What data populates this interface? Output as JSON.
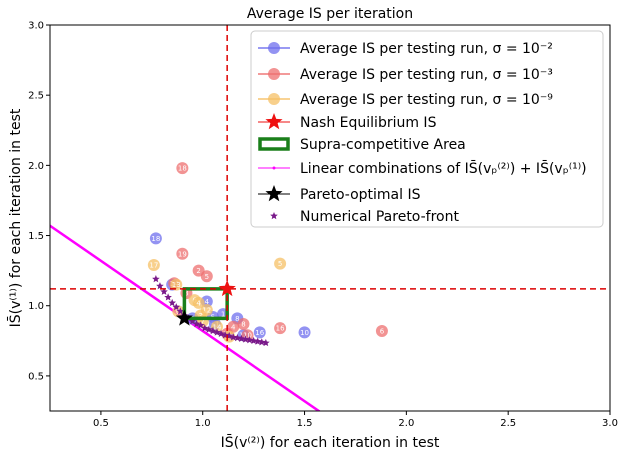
{
  "chart_data": {
    "type": "scatter",
    "title": "Average IS per iteration",
    "xlabel": "IS̄(v⁽²⁾) for each iteration in test",
    "ylabel": "IS̄(v⁽¹⁾) for each iteration in test",
    "xlim": [
      0.25,
      3.0
    ],
    "ylim": [
      0.25,
      3.0
    ],
    "xticks": [
      "0.5",
      "1.0",
      "1.5",
      "2.0",
      "2.5",
      "3.0"
    ],
    "yticks": [
      "0.5",
      "1.0",
      "1.5",
      "2.0",
      "2.5",
      "3.0"
    ],
    "legend_position": "top-right",
    "colors": {
      "blue": "#6f6fee",
      "red": "#ee6f6f",
      "orange": "#f6c066",
      "nash": "#ee1111",
      "supra": "#1a7f1a",
      "linear": "#ff00ff",
      "pareto": "#000000",
      "front": "#7a1a8a",
      "dashed": "#dd0000"
    },
    "legend": [
      {
        "key": "blue",
        "label": "Average IS per testing run, σ = 10⁻²"
      },
      {
        "key": "red",
        "label": "Average IS per testing run, σ = 10⁻³"
      },
      {
        "key": "orange",
        "label": "Average IS per testing run, σ = 10⁻⁹"
      },
      {
        "key": "nash",
        "label": "Nash Equilibrium IS"
      },
      {
        "key": "supra",
        "label": "Supra-competitive Area"
      },
      {
        "key": "linear",
        "label": "Linear combinations of IS̄(vₚ⁽²⁾) + IS̄(vₚ⁽¹⁾)"
      },
      {
        "key": "pareto",
        "label": "Pareto-optimal IS"
      },
      {
        "key": "front",
        "label": "Numerical Pareto-front"
      }
    ],
    "nash": {
      "x": 1.12,
      "y": 1.12
    },
    "supra_area": {
      "x": [
        0.91,
        1.12
      ],
      "y": [
        0.91,
        1.12
      ]
    },
    "pareto_optimal": {
      "x": 0.91,
      "y": 0.91
    },
    "linear_combination": {
      "x": [
        0.2,
        1.6
      ],
      "y": [
        1.62,
        0.22
      ]
    },
    "series": [
      {
        "name": "sigma_1e-2",
        "color_key": "blue",
        "points": [
          {
            "x": 0.77,
            "y": 1.48,
            "label": "18"
          },
          {
            "x": 0.85,
            "y": 1.15,
            "label": "7"
          },
          {
            "x": 1.02,
            "y": 1.03,
            "label": "4"
          },
          {
            "x": 1.06,
            "y": 0.87,
            "label": "11"
          },
          {
            "x": 1.1,
            "y": 0.94,
            "label": "1"
          },
          {
            "x": 1.17,
            "y": 0.91,
            "label": "8"
          },
          {
            "x": 1.28,
            "y": 0.81,
            "label": "16"
          },
          {
            "x": 1.5,
            "y": 0.81,
            "label": "10"
          },
          {
            "x": 1.2,
            "y": 0.79,
            "label": "12"
          },
          {
            "x": 0.95,
            "y": 0.91,
            "label": "9"
          },
          {
            "x": 1.05,
            "y": 0.92,
            "label": "5"
          }
        ]
      },
      {
        "name": "sigma_1e-3",
        "color_key": "red",
        "points": [
          {
            "x": 0.9,
            "y": 1.98,
            "label": "18"
          },
          {
            "x": 0.9,
            "y": 1.37,
            "label": "19"
          },
          {
            "x": 0.98,
            "y": 1.25,
            "label": "2"
          },
          {
            "x": 1.02,
            "y": 1.21,
            "label": "5"
          },
          {
            "x": 0.86,
            "y": 1.16,
            "label": "14"
          },
          {
            "x": 0.92,
            "y": 1.09,
            "label": "3"
          },
          {
            "x": 1.2,
            "y": 0.87,
            "label": "8"
          },
          {
            "x": 1.38,
            "y": 0.84,
            "label": "16"
          },
          {
            "x": 1.88,
            "y": 0.82,
            "label": "6"
          },
          {
            "x": 1.15,
            "y": 0.85,
            "label": "4"
          },
          {
            "x": 1.22,
            "y": 0.79,
            "label": "10"
          },
          {
            "x": 1.12,
            "y": 0.8,
            "label": "13"
          }
        ]
      },
      {
        "name": "sigma_1e-9",
        "color_key": "orange",
        "points": [
          {
            "x": 0.76,
            "y": 1.29,
            "label": "17"
          },
          {
            "x": 0.87,
            "y": 1.15,
            "label": "13"
          },
          {
            "x": 1.38,
            "y": 1.3,
            "label": "5"
          },
          {
            "x": 0.96,
            "y": 1.04,
            "label": "6"
          },
          {
            "x": 0.98,
            "y": 1.02,
            "label": "4"
          },
          {
            "x": 1.02,
            "y": 0.97,
            "label": "12"
          },
          {
            "x": 0.99,
            "y": 0.93,
            "label": "3"
          },
          {
            "x": 1.0,
            "y": 0.89,
            "label": "7"
          },
          {
            "x": 0.88,
            "y": 0.96,
            "label": "0"
          },
          {
            "x": 1.13,
            "y": 0.78,
            "label": "10"
          },
          {
            "x": 1.07,
            "y": 0.85,
            "label": "14"
          }
        ]
      }
    ],
    "pareto_front": {
      "x": [
        0.77,
        0.79,
        0.81,
        0.83,
        0.85,
        0.87,
        0.89,
        0.91,
        0.93,
        0.95,
        0.97,
        0.99,
        1.01,
        1.03,
        1.05,
        1.07,
        1.09,
        1.11,
        1.13,
        1.15,
        1.17,
        1.19,
        1.21,
        1.23,
        1.25,
        1.27,
        1.29,
        1.31
      ],
      "y": [
        1.19,
        1.14,
        1.1,
        1.06,
        1.02,
        0.99,
        0.96,
        0.93,
        0.91,
        0.89,
        0.87,
        0.86,
        0.84,
        0.83,
        0.82,
        0.81,
        0.8,
        0.79,
        0.785,
        0.775,
        0.77,
        0.765,
        0.76,
        0.755,
        0.75,
        0.745,
        0.74,
        0.735
      ]
    }
  }
}
